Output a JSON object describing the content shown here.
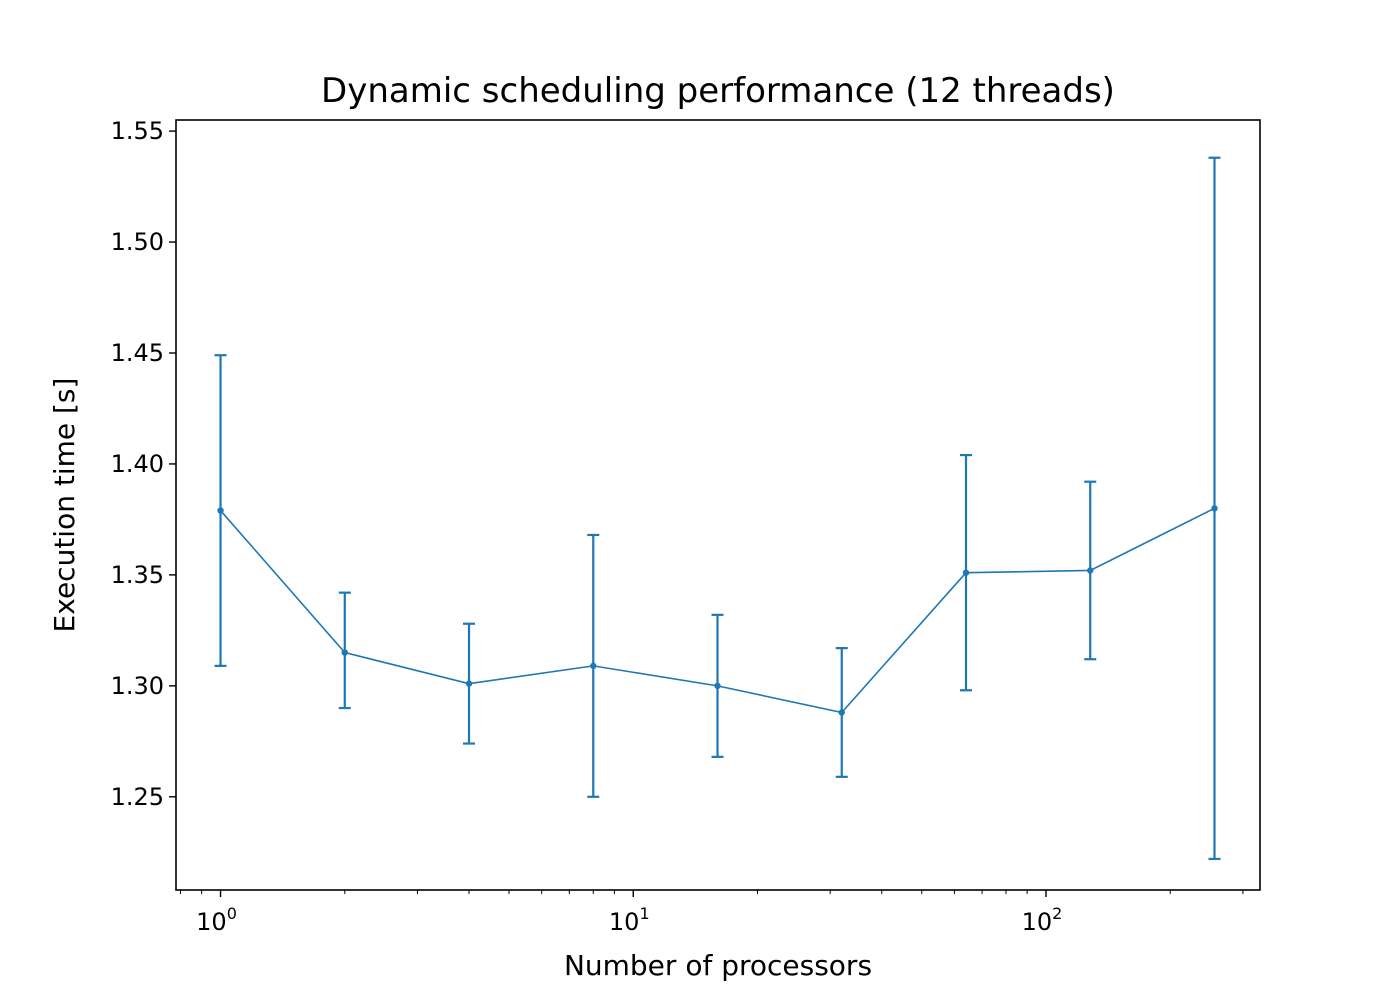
{
  "chart_data": {
    "type": "line",
    "title": "Dynamic scheduling performance (12 threads)",
    "xlabel": "Number of processors",
    "ylabel": "Execution time [s]",
    "xscale": "log",
    "xlim": [
      0.78,
      330
    ],
    "ylim": [
      1.208,
      1.555
    ],
    "grid": false,
    "color": "#1f77b4",
    "yticks": [
      "1.25",
      "1.30",
      "1.35",
      "1.40",
      "1.45",
      "1.50",
      "1.55"
    ],
    "xticks": [
      {
        "value": 1,
        "base": "10",
        "exp": "0"
      },
      {
        "value": 10,
        "base": "10",
        "exp": "1"
      },
      {
        "value": 100,
        "base": "10",
        "exp": "2"
      }
    ],
    "series": [
      {
        "x": [
          1,
          2,
          4,
          8,
          16,
          32,
          64,
          128,
          256
        ],
        "y": [
          1.379,
          1.315,
          1.301,
          1.309,
          1.3,
          1.288,
          1.351,
          1.352,
          1.38
        ],
        "yerr_low": [
          1.309,
          1.29,
          1.274,
          1.25,
          1.268,
          1.259,
          1.298,
          1.312,
          1.222
        ],
        "yerr_high": [
          1.449,
          1.342,
          1.328,
          1.368,
          1.332,
          1.317,
          1.404,
          1.392,
          1.538
        ]
      }
    ]
  }
}
